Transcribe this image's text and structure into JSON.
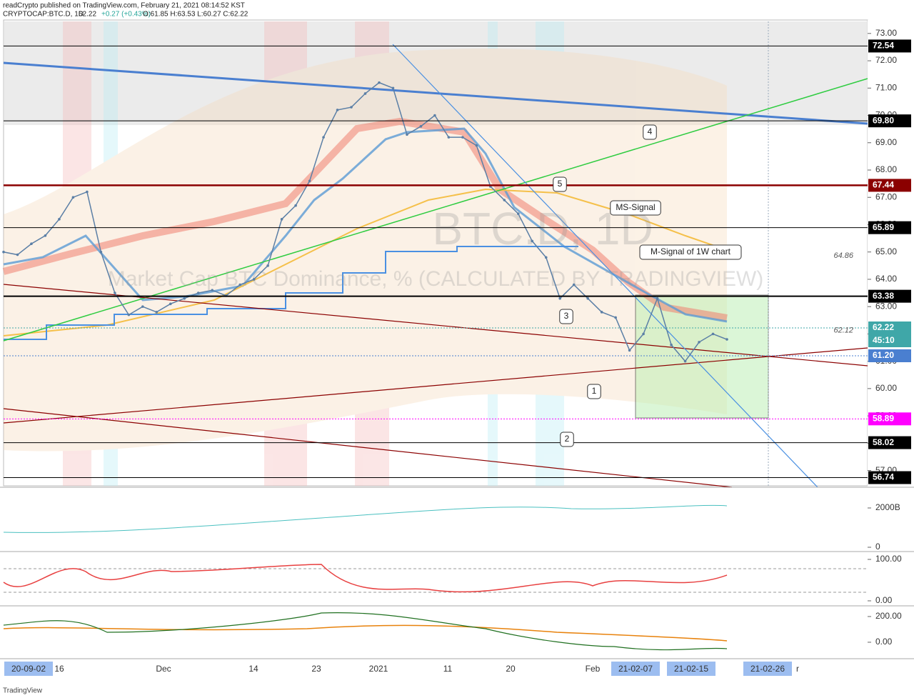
{
  "header": {
    "published": "readCrypto published on TradingView.com, February 21, 2021 08:14:52 KST",
    "symbol": "CRYPTOCAP:BTC.D, 1D",
    "last": "62.22",
    "change": "+0.27 (+0.43%)",
    "ohlc": "O:61.85 H:63.53 L:60.27 C:62.22"
  },
  "chart_data": {
    "type": "line",
    "title": "BTC.D, 1D",
    "subtitle": "Market Cap BTC Dominance, % (CALCULATED BY TRADINGVIEW)",
    "categories": [
      null,
      null,
      null,
      null,
      null,
      null,
      null,
      null,
      null,
      null,
      null,
      null,
      null,
      null,
      null,
      null,
      null,
      null,
      null,
      null,
      null,
      null,
      null,
      null,
      null,
      null,
      null,
      null,
      null,
      null,
      null,
      null,
      null,
      null,
      null,
      null,
      null,
      null,
      null,
      null,
      null,
      null,
      null,
      null,
      null,
      null,
      null,
      null,
      null,
      null,
      null,
      null,
      null
    ],
    "values": [
      65.0,
      64.9,
      65.3,
      65.6,
      66.2,
      67.0,
      67.2,
      65.0,
      63.5,
      62.7,
      63.0,
      62.8,
      63.1,
      63.3,
      63.5,
      63.6,
      63.4,
      63.8,
      64.0,
      64.5,
      66.2,
      66.7,
      67.6,
      69.2,
      70.2,
      70.3,
      70.8,
      71.2,
      71.0,
      69.3,
      69.6,
      70.0,
      69.2,
      69.2,
      68.9,
      67.4,
      66.9,
      66.4,
      65.4,
      64.8,
      63.3,
      63.8,
      63.3,
      62.8,
      62.6,
      61.4,
      62.0,
      63.3,
      61.6,
      61.0,
      61.7,
      62.0,
      61.8
    ],
    "color": "#5b7fa6",
    "ylim": [
      56.44,
      73.44
    ],
    "yticks": [
      {
        "value": 73,
        "label": "73.00"
      },
      {
        "value": 72,
        "label": "72.00"
      },
      {
        "value": 71,
        "label": "71.00"
      },
      {
        "value": 70,
        "label": "70.00"
      },
      {
        "value": 69,
        "label": "69.00"
      },
      {
        "value": 68,
        "label": "68.00"
      },
      {
        "value": 67,
        "label": "67.00"
      },
      {
        "value": 66,
        "label": "66.00"
      },
      {
        "value": 65,
        "label": "65.00"
      },
      {
        "value": 64,
        "label": "64.00"
      },
      {
        "value": 63,
        "label": "63.00"
      },
      {
        "value": 62,
        "label": "62.00"
      },
      {
        "value": 61,
        "label": "61.00"
      },
      {
        "value": 60,
        "label": "60.00"
      },
      {
        "value": 59,
        "label": "59.00"
      },
      {
        "value": 58,
        "label": "58.00"
      },
      {
        "value": 57,
        "label": "57.00"
      }
    ],
    "levels": [
      {
        "value": 72.54,
        "color": "#000000"
      },
      {
        "value": 69.8,
        "label": "69.80",
        "color": "#000000"
      },
      {
        "value": 67.44,
        "color": "#8b0000"
      },
      {
        "value": 65.89,
        "color": "#000000"
      },
      {
        "value": 63.38,
        "color": "#000000"
      },
      {
        "value": 62.22,
        "color": "#3fa7a8"
      },
      {
        "value": 61.2,
        "label": "61.20",
        "color": "#4a7fd0"
      },
      {
        "value": 58.89,
        "color": "#ff00ff"
      },
      {
        "value": 58.02,
        "color": "#000000"
      },
      {
        "value": 56.74,
        "color": "#000000"
      }
    ],
    "countdown": "45:10",
    "notes": [
      {
        "value": 64.86
      },
      {
        "value": 62.12
      }
    ],
    "annotations": [
      "1",
      "2",
      "3",
      "4",
      "5",
      "MS-Signal",
      "M-Signal of 1W chart"
    ],
    "x_labels": [
      "20-09-02",
      "16",
      "Dec",
      "14",
      "23",
      "2021",
      "11",
      "20",
      "Feb",
      "21-02-07",
      "21-02-15",
      "21-02-26",
      "r"
    ]
  },
  "indicators": [
    {
      "ylim": [
        -145,
        3018
      ],
      "yticks": [
        {
          "value": 2000,
          "label": "2000B"
        },
        0
      ]
    },
    {
      "ylim": [
        -12.1,
        113.8
      ],
      "yticks": [
        {
          "value": 100,
          "label": "100.00"
        },
        {
          "value": 0,
          "label": "0.00"
        }
      ]
    },
    {
      "ylim": [
        -117,
        272
      ],
      "yticks": [
        {
          "value": 200,
          "label": "200.00"
        },
        {
          "value": 0,
          "label": "0.00"
        }
      ]
    }
  ],
  "footer": "TradingView"
}
